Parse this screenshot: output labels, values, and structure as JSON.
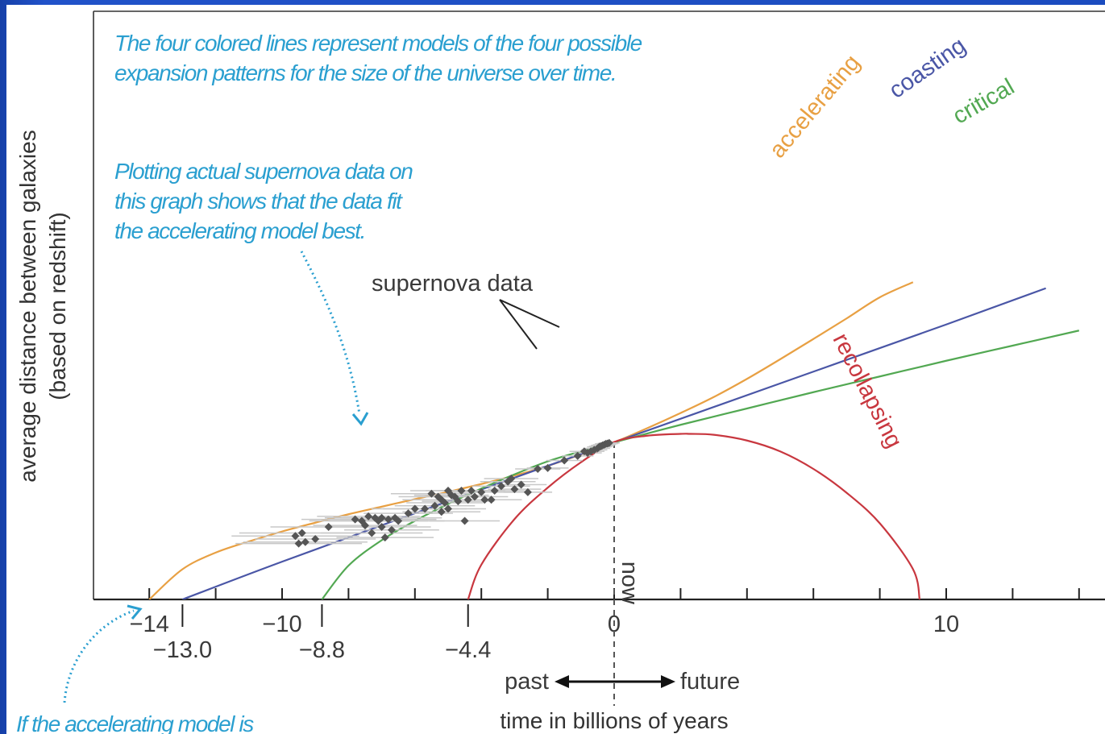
{
  "colors": {
    "accelerating": "#e8a043",
    "coasting": "#4a56a6",
    "critical": "#52a852",
    "recollapsing": "#c8373f",
    "data": "#555555",
    "note": "#2a9fd0"
  },
  "notes": {
    "top_line1": "The four colored lines represent models of the four possible",
    "top_line2": "expansion patterns for the size of the universe over time.",
    "mid_line1": "Plotting actual supernova data on",
    "mid_line2": "this graph shows that the data fit",
    "mid_line3": "the accelerating model best.",
    "bottom_line1": "If the accelerating model is"
  },
  "chart_data": {
    "type": "line",
    "xlabel": "time in billions of years",
    "ylabel_line1": "average distance between galaxies",
    "ylabel_line2": "(based on redshift)",
    "xlim": [
      -15.5,
      14.2
    ],
    "ylim": [
      0,
      1
    ],
    "major_ticks": [
      {
        "value": -14,
        "label": "−14"
      },
      {
        "value": -10,
        "label": "−10"
      },
      {
        "value": 0,
        "label": "0"
      },
      {
        "value": 10,
        "label": "10"
      }
    ],
    "marked_origins": [
      {
        "value": -13.0,
        "label": "−13.0"
      },
      {
        "value": -8.8,
        "label": "−8.8"
      },
      {
        "value": -4.4,
        "label": "−4.4"
      }
    ],
    "now_label": "now",
    "past_label": "past",
    "future_label": "future",
    "supernova_label": "supernova data",
    "series": [
      {
        "name": "accelerating",
        "color": "#e8a043",
        "x": [
          -14.0,
          -13.0,
          -12.0,
          -11.0,
          -10.0,
          -9.0,
          -8.0,
          -7.0,
          -6.0,
          -5.0,
          -4.0,
          -3.0,
          -2.0,
          -1.0,
          0.0,
          1.0,
          2.0,
          3.0,
          4.0,
          5.0,
          6.0,
          7.0,
          8.0,
          9.0
        ],
        "y": [
          0.0,
          0.1,
          0.155,
          0.192,
          0.225,
          0.254,
          0.282,
          0.307,
          0.332,
          0.356,
          0.382,
          0.41,
          0.442,
          0.48,
          0.52,
          0.567,
          0.617,
          0.67,
          0.73,
          0.795,
          0.862,
          0.93,
          1.0,
          1.05
        ]
      },
      {
        "name": "coasting",
        "color": "#4a56a6",
        "x": [
          -13.0,
          -10.0,
          -5.0,
          0.0,
          5.0,
          10.0,
          13.0
        ],
        "y": [
          0.0,
          0.125,
          0.325,
          0.52,
          0.715,
          0.91,
          1.03
        ]
      },
      {
        "name": "critical",
        "color": "#52a852",
        "x": [
          -8.8,
          -8.0,
          -7.0,
          -6.0,
          -5.0,
          -4.0,
          -3.0,
          -2.0,
          -1.0,
          0.0,
          2.0,
          4.0,
          6.0,
          8.0,
          10.0,
          12.0,
          14.0
        ],
        "y": [
          0.0,
          0.112,
          0.196,
          0.26,
          0.316,
          0.367,
          0.414,
          0.457,
          0.49,
          0.52,
          0.578,
          0.632,
          0.686,
          0.738,
          0.79,
          0.84,
          0.89
        ]
      },
      {
        "name": "recollapsing",
        "color": "#c8373f",
        "x": [
          -4.4,
          -4.0,
          -3.0,
          -2.0,
          -1.0,
          0.0,
          1.0,
          2.0,
          2.3,
          3.0,
          4.0,
          5.0,
          6.0,
          7.0,
          8.0,
          9.0,
          9.2
        ],
        "y": [
          0.0,
          0.115,
          0.266,
          0.37,
          0.454,
          0.521,
          0.542,
          0.548,
          0.548,
          0.545,
          0.526,
          0.49,
          0.432,
          0.353,
          0.252,
          0.1,
          0.0
        ]
      }
    ],
    "supernova_points": [
      [
        -0.8,
        0.485
      ],
      [
        -0.7,
        0.49
      ],
      [
        -0.6,
        0.495
      ],
      [
        -0.5,
        0.5
      ],
      [
        -0.45,
        0.505
      ],
      [
        -0.4,
        0.507
      ],
      [
        -0.35,
        0.51
      ],
      [
        -0.3,
        0.512
      ],
      [
        -0.25,
        0.515
      ],
      [
        -0.2,
        0.516
      ],
      [
        -0.15,
        0.518
      ],
      [
        -0.9,
        0.49
      ],
      [
        -1.1,
        0.475
      ],
      [
        -1.5,
        0.46
      ],
      [
        -2.3,
        0.432
      ],
      [
        -2.0,
        0.435
      ],
      [
        -3.1,
        0.4
      ],
      [
        -3.2,
        0.39
      ],
      [
        -2.8,
        0.38
      ],
      [
        -3.4,
        0.375
      ],
      [
        -3.6,
        0.36
      ],
      [
        -4.0,
        0.355
      ],
      [
        -4.3,
        0.36
      ],
      [
        -4.6,
        0.36
      ],
      [
        -4.8,
        0.34
      ],
      [
        -4.9,
        0.345
      ],
      [
        -5.0,
        0.36
      ],
      [
        -5.2,
        0.33
      ],
      [
        -5.3,
        0.34
      ],
      [
        -5.5,
        0.35
      ],
      [
        -5.1,
        0.32
      ],
      [
        -4.7,
        0.325
      ],
      [
        -4.4,
        0.33
      ],
      [
        -4.2,
        0.34
      ],
      [
        -3.9,
        0.33
      ],
      [
        -3.7,
        0.33
      ],
      [
        -5.4,
        0.31
      ],
      [
        -5.7,
        0.3
      ],
      [
        -6.0,
        0.3
      ],
      [
        -6.2,
        0.285
      ],
      [
        -5.2,
        0.29
      ],
      [
        -5.0,
        0.3
      ],
      [
        -7.0,
        0.27
      ],
      [
        -7.2,
        0.27
      ],
      [
        -7.4,
        0.275
      ],
      [
        -7.6,
        0.26
      ],
      [
        -7.8,
        0.265
      ],
      [
        -7.1,
        0.26
      ],
      [
        -6.8,
        0.265
      ],
      [
        -6.6,
        0.27
      ],
      [
        -6.5,
        0.26
      ],
      [
        -7.5,
        0.245
      ],
      [
        -7.0,
        0.24
      ],
      [
        -6.7,
        0.23
      ],
      [
        -7.3,
        0.22
      ],
      [
        -8.6,
        0.24
      ],
      [
        -9.4,
        0.22
      ],
      [
        -9.6,
        0.21
      ],
      [
        -9.3,
        0.19
      ],
      [
        -9.0,
        0.2
      ],
      [
        -9.5,
        0.185
      ],
      [
        -3.0,
        0.365
      ],
      [
        -2.6,
        0.355
      ],
      [
        -4.5,
        0.26
      ],
      [
        -6.9,
        0.205
      ]
    ]
  }
}
